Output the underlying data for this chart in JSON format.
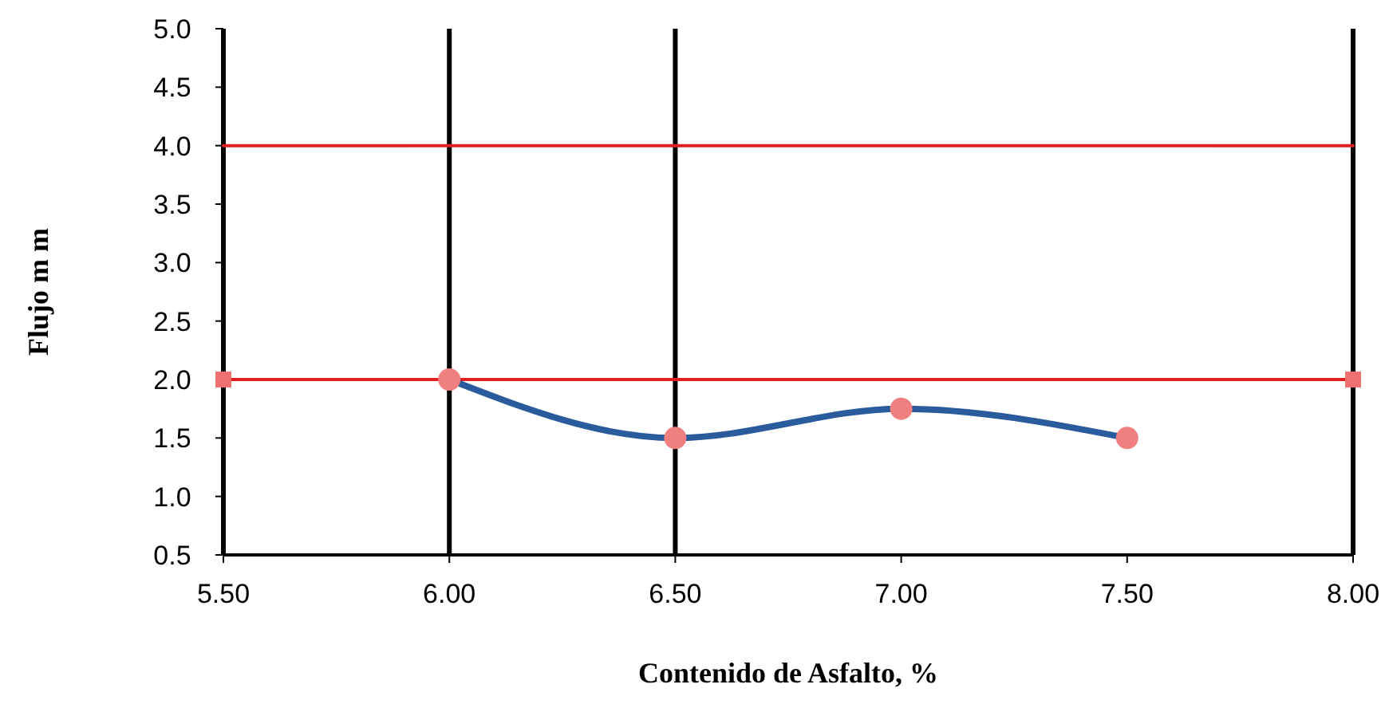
{
  "chart_data": {
    "type": "line",
    "xlabel": "Contenido de Asfalto, %",
    "ylabel": "Flujo m m",
    "xlim": [
      5.5,
      8.0
    ],
    "ylim": [
      0.5,
      5.0
    ],
    "xticks": [
      {
        "value": 5.5,
        "label": "5.50"
      },
      {
        "value": 6,
        "label": "6.00"
      },
      {
        "value": 6.5,
        "label": "6.50"
      },
      {
        "value": 7,
        "label": "7.00"
      },
      {
        "value": 7.5,
        "label": "7.50"
      },
      {
        "value": 8,
        "label": "8.00"
      }
    ],
    "yticks": [
      {
        "value": 0.5,
        "label": "0.5"
      },
      {
        "value": 1,
        "label": "1.0"
      },
      {
        "value": 1.5,
        "label": "1.5"
      },
      {
        "value": 2,
        "label": "2.0"
      },
      {
        "value": 2.5,
        "label": "2.5"
      },
      {
        "value": 3,
        "label": "3.0"
      },
      {
        "value": 3.5,
        "label": "3.5"
      },
      {
        "value": 4,
        "label": "4.0"
      },
      {
        "value": 4.5,
        "label": "4.5"
      },
      {
        "value": 5,
        "label": "5.0"
      }
    ],
    "ref_lines": [
      {
        "axis": "x",
        "value": 6.0,
        "color": "#000000"
      },
      {
        "axis": "x",
        "value": 6.5,
        "color": "#000000"
      }
    ],
    "series": [
      {
        "x": [
          5.5,
          8.0
        ],
        "values": [
          4.0,
          4.0
        ],
        "color": "#e02020",
        "marker": "none"
      },
      {
        "x": [
          5.5,
          8.0
        ],
        "values": [
          2.0,
          2.0
        ],
        "color": "#e02020",
        "marker": "square",
        "colors": [
          "#f07070",
          "#f07070"
        ]
      },
      {
        "x": [
          6.0,
          6.5,
          7.0,
          7.5
        ],
        "values": [
          2.0,
          1.5,
          1.75,
          1.5
        ],
        "color": "#2a5b9c",
        "marker": "circle",
        "colors": [
          "#f08080",
          "#f08080",
          "#f08080",
          "#f08080"
        ]
      }
    ]
  }
}
